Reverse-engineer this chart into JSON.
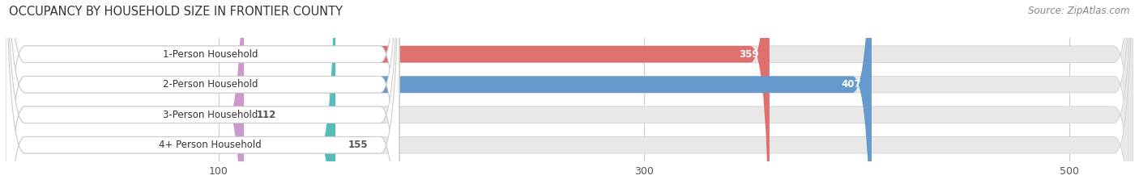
{
  "title": "OCCUPANCY BY HOUSEHOLD SIZE IN FRONTIER COUNTY",
  "source": "Source: ZipAtlas.com",
  "categories": [
    "1-Person Household",
    "2-Person Household",
    "3-Person Household",
    "4+ Person Household"
  ],
  "values": [
    359,
    407,
    112,
    155
  ],
  "bar_colors": [
    "#e07070",
    "#6699cc",
    "#cc99cc",
    "#55bbbb"
  ],
  "xlim": [
    0,
    530
  ],
  "xticks": [
    100,
    300,
    500
  ],
  "background_color": "#ffffff",
  "track_color": "#e8e8e8",
  "title_fontsize": 10.5,
  "source_fontsize": 8.5,
  "bar_label_fontsize": 8.5,
  "tick_fontsize": 9,
  "value_label_color_inside": "#ffffff",
  "value_label_color_outside": "#555555",
  "label_box_facecolor": "#ffffff",
  "label_box_edgecolor": "#cccccc"
}
